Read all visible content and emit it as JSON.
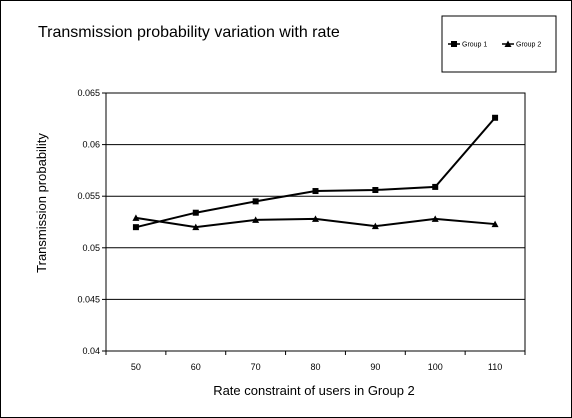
{
  "chart_data": {
    "type": "line",
    "title": "Transmission probability variation with rate",
    "xlabel": "Rate constraint of users in Group 2",
    "ylabel": "Transmission probability",
    "categories": [
      "50",
      "60",
      "70",
      "80",
      "90",
      "100",
      "110"
    ],
    "ylim": [
      0.04,
      0.065
    ],
    "yticks": [
      "0.04",
      "0.045",
      "0.05",
      "0.055",
      "0.06",
      "0.065"
    ],
    "grid": true,
    "legend_position": "top-right",
    "series": [
      {
        "name": "Group 1",
        "marker": "square",
        "values": [
          0.052,
          0.0534,
          0.0545,
          0.0555,
          0.0556,
          0.0559,
          0.0626
        ]
      },
      {
        "name": "Group 2",
        "marker": "triangle",
        "values": [
          0.0529,
          0.052,
          0.0527,
          0.0528,
          0.0521,
          0.0528,
          0.0523
        ]
      }
    ]
  }
}
